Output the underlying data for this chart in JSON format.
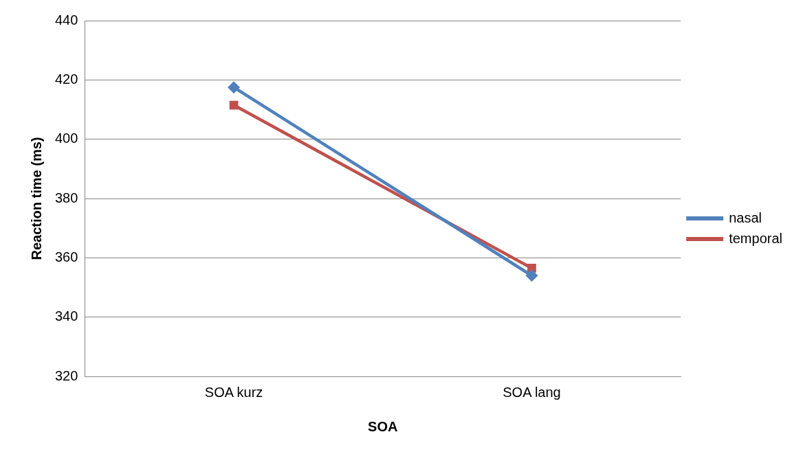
{
  "chart_data": {
    "type": "line",
    "xlabel": "SOA",
    "ylabel": "Reaction time (ms)",
    "categories": [
      "SOA kurz",
      "SOA lang"
    ],
    "series": [
      {
        "name": "nasal",
        "color": "#4f81bd",
        "values": [
          417.5,
          354
        ],
        "marker": "diamond"
      },
      {
        "name": "temporal",
        "color": "#c0504d",
        "values": [
          411.5,
          356.5
        ],
        "marker": "square"
      }
    ],
    "ylim": [
      320,
      440
    ],
    "yticks": [
      320,
      340,
      360,
      380,
      400,
      420,
      440
    ],
    "grid": "y",
    "legend": "right",
    "line_style": "solid"
  }
}
